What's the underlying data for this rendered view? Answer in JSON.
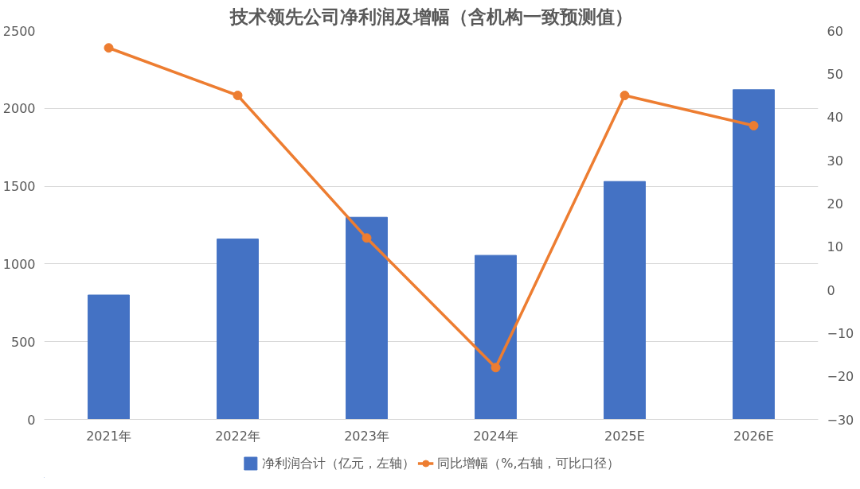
{
  "chart_data": {
    "type": "bar",
    "title": "技术领先公司净利润及增幅（含机构一致预测值）",
    "categories": [
      "2021年",
      "2022年",
      "2023年",
      "2024年",
      "2025E",
      "2026E"
    ],
    "series": [
      {
        "name": "净利润合计（亿元，左轴）",
        "color": "#4472c4",
        "values": [
          800,
          1160,
          1300,
          1055,
          1530,
          2120
        ]
      },
      {
        "name": "同比增幅（%,右轴，可比口径）",
        "type": "line",
        "axis": "y2",
        "color": "#ed7d31",
        "values": [
          56,
          45,
          12,
          -18,
          45,
          38
        ]
      }
    ],
    "ylim": [
      0,
      2500
    ],
    "yticks": [
      0,
      500,
      1000,
      1500,
      2000,
      2500
    ],
    "y2lim": [
      -30,
      60
    ],
    "y2ticks": [
      -30,
      -20,
      -10,
      0,
      10,
      20,
      30,
      40,
      50,
      60
    ],
    "grid": "y",
    "legend": "bottom",
    "marker": "circle",
    "line_style": "solid"
  }
}
